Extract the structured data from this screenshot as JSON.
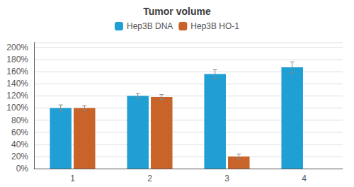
{
  "chart_data": {
    "type": "bar",
    "title": "Tumor volume",
    "categories": [
      "1",
      "2",
      "3",
      "4"
    ],
    "series": [
      {
        "name": "Hep3B DNA",
        "color": "#1f9fd4",
        "values": [
          1.0,
          1.2,
          1.56,
          1.67
        ],
        "errors": [
          0.05,
          0.04,
          0.07,
          0.09
        ]
      },
      {
        "name": "Hep3B HO-1",
        "color": "#c8642a",
        "values": [
          1.0,
          1.18,
          0.2,
          null
        ],
        "errors": [
          0.04,
          0.04,
          0.04,
          null
        ]
      }
    ],
    "ylim": [
      0,
      2.08
    ],
    "yticks": [
      {
        "value": 0.0,
        "label": "0%"
      },
      {
        "value": 0.2,
        "label": "20%"
      },
      {
        "value": 0.4,
        "label": "40%"
      },
      {
        "value": 0.6,
        "label": "60%"
      },
      {
        "value": 0.8,
        "label": "80%"
      },
      {
        "value": 1.0,
        "label": "100%"
      },
      {
        "value": 1.2,
        "label": "120%"
      },
      {
        "value": 1.4,
        "label": "140%"
      },
      {
        "value": 1.6,
        "label": "160%"
      },
      {
        "value": 1.8,
        "label": "180%"
      },
      {
        "value": 2.0,
        "label": "200%"
      }
    ],
    "grid": true,
    "legend": "top"
  }
}
